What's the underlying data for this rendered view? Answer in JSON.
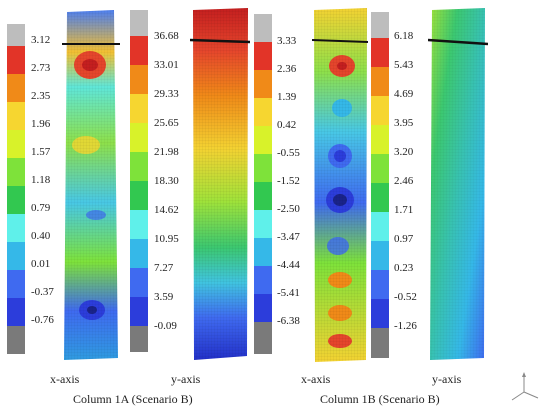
{
  "colors": {
    "scale": [
      "#7a7a7a",
      "#2c3ddb",
      "#3f6af0",
      "#35b8e8",
      "#5ff0ea",
      "#32c850",
      "#7ee23a",
      "#d8f22a",
      "#f6d630",
      "#f08a18",
      "#e23428",
      "#bdbdbd"
    ]
  },
  "legends": [
    {
      "ticks": [
        "3.12",
        "2.73",
        "2.35",
        "1.96",
        "1.57",
        "1.18",
        "0.79",
        "0.40",
        "0.01",
        "-0.37",
        "-0.76"
      ]
    },
    {
      "ticks": [
        "36.68",
        "33.01",
        "29.33",
        "25.65",
        "21.98",
        "18.30",
        "14.62",
        "10.95",
        "7.27",
        "3.59",
        "-0.09"
      ]
    },
    {
      "ticks": [
        "3.33",
        "2.36",
        "1.39",
        "0.42",
        "-0.55",
        "-1.52",
        "-2.50",
        "-3.47",
        "-4.44",
        "-5.41",
        "-6.38"
      ]
    },
    {
      "ticks": [
        "6.18",
        "5.43",
        "4.69",
        "3.95",
        "3.20",
        "2.46",
        "1.71",
        "0.97",
        "0.23",
        "-0.52",
        "-1.26"
      ]
    }
  ],
  "axis_labels": [
    "x-axis",
    "y-axis",
    "x-axis",
    "y-axis"
  ],
  "captions": [
    "Column 1A (Scenario B)",
    "Column 1B (Scenario B)"
  ]
}
